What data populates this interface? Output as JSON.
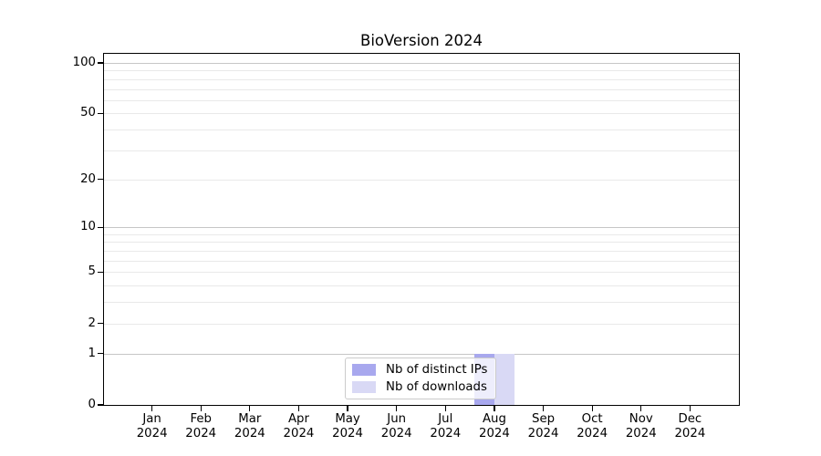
{
  "title": "BioVersion 2024",
  "chart_data": {
    "type": "bar",
    "title": "BioVersion 2024",
    "categories": [
      "Jan 2024",
      "Feb 2024",
      "Mar 2024",
      "Apr 2024",
      "May 2024",
      "Jun 2024",
      "Jul 2024",
      "Aug 2024",
      "Sep 2024",
      "Oct 2024",
      "Nov 2024",
      "Dec 2024"
    ],
    "series": [
      {
        "name": "Nb of distinct IPs",
        "color": "#a8a8ee",
        "values": [
          0,
          0,
          0,
          0,
          0,
          0,
          0,
          1,
          0,
          0,
          0,
          0
        ]
      },
      {
        "name": "Nb of downloads",
        "color": "#d9d9f5",
        "values": [
          0,
          0,
          0,
          0,
          0,
          0,
          0,
          1,
          0,
          0,
          0,
          0
        ]
      }
    ],
    "xlabel": "",
    "ylabel": "",
    "yscale": "log1p",
    "ylim": [
      0,
      113
    ],
    "y_tick_labels": [
      0,
      1,
      2,
      5,
      10,
      20,
      50,
      100
    ],
    "y_major_gridlines": [
      1,
      10,
      100
    ],
    "y_minor_gridlines": [
      2,
      3,
      4,
      5,
      6,
      7,
      8,
      9,
      20,
      30,
      40,
      50,
      60,
      70,
      80,
      90
    ],
    "grid": "horizontal",
    "legend_position": "lower center",
    "colors": {
      "grid_major": "#c6c6c6",
      "grid_minor": "#e9e9e9",
      "axis": "#000000",
      "text": "#000000",
      "background": "#ffffff"
    }
  }
}
